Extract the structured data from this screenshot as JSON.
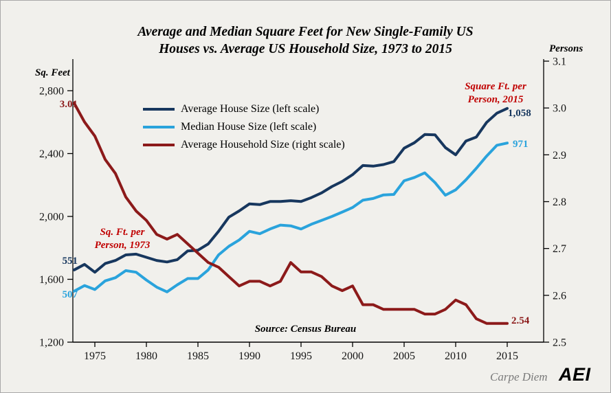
{
  "title": {
    "line1": "Average and Median Square Feet for New Single-Family US",
    "line2": "Houses vs. Average US Household Size, 1973 to 2015"
  },
  "axis_titles": {
    "left": "Sq. Feet",
    "right": "Persons"
  },
  "annotations": {
    "start_household": "3.01",
    "start_avg": "551",
    "start_median": "507",
    "note_1973_line1": "Sq. Ft. per",
    "note_1973_line2": "Person, 1973",
    "note_2015_line1": "Square Ft. per",
    "note_2015_line2": "Person, 2015",
    "end_avg": "1,058",
    "end_median": "971",
    "end_household": "2.54",
    "source": "Source: Census Bureau"
  },
  "footer": {
    "credit": "Carpe Diem",
    "logo": "AEI"
  },
  "colors": {
    "navy": "#17375e",
    "light_blue": "#2aa3dc",
    "dark_red": "#8c1a1a",
    "annotation_red": "#c00000",
    "footer_gray": "#7a7a7a",
    "background": "#f1f0ec"
  },
  "chart_data": {
    "type": "line",
    "title": "Average and Median Square Feet for New Single-Family US Houses vs. Average US Household Size, 1973 to 2015",
    "source": "Census Bureau",
    "grid": false,
    "legend_position": "top-left-inside",
    "x_range": [
      1973,
      2015
    ],
    "x_ticks": [
      1975,
      1980,
      1985,
      1990,
      1995,
      2000,
      2005,
      2010,
      2015
    ],
    "left_axis": {
      "label": "Sq. Feet",
      "range": [
        1200,
        2800
      ],
      "ticks": [
        {
          "v": 1200,
          "label": "1,200"
        },
        {
          "v": 1600,
          "label": "1,600"
        },
        {
          "v": 2000,
          "label": "2,000"
        },
        {
          "v": 2400,
          "label": "2,400"
        },
        {
          "v": 2800,
          "label": "2,800"
        }
      ]
    },
    "right_axis": {
      "label": "Persons",
      "range": [
        2.5,
        3.1
      ],
      "ticks": [
        {
          "v": 2.5,
          "label": "2.5"
        },
        {
          "v": 2.6,
          "label": "2.6"
        },
        {
          "v": 2.7,
          "label": "2.7"
        },
        {
          "v": 2.8,
          "label": "2.8"
        },
        {
          "v": 2.9,
          "label": "2.9"
        },
        {
          "v": 3.0,
          "label": "3.0"
        },
        {
          "v": 3.1,
          "label": "3.1"
        }
      ]
    },
    "years": [
      1973,
      1974,
      1975,
      1976,
      1977,
      1978,
      1979,
      1980,
      1981,
      1982,
      1983,
      1984,
      1985,
      1986,
      1987,
      1988,
      1989,
      1990,
      1991,
      1992,
      1993,
      1994,
      1995,
      1996,
      1997,
      1998,
      1999,
      2000,
      2001,
      2002,
      2003,
      2004,
      2005,
      2006,
      2007,
      2008,
      2009,
      2010,
      2011,
      2012,
      2013,
      2014,
      2015
    ],
    "series": [
      {
        "name": "Average House Size",
        "legend": "Average House Size (left scale)",
        "axis": "left",
        "color": "#17375e",
        "values": [
          1660,
          1695,
          1645,
          1700,
          1720,
          1755,
          1760,
          1740,
          1720,
          1710,
          1725,
          1780,
          1785,
          1825,
          1905,
          1995,
          2035,
          2080,
          2075,
          2095,
          2095,
          2100,
          2095,
          2120,
          2150,
          2190,
          2223,
          2266,
          2324,
          2320,
          2330,
          2349,
          2434,
          2469,
          2521,
          2519,
          2438,
          2392,
          2480,
          2505,
          2598,
          2657,
          2687
        ]
      },
      {
        "name": "Median House Size",
        "legend": "Median House Size (left scale)",
        "axis": "left",
        "color": "#2aa3dc",
        "values": [
          1525,
          1560,
          1535,
          1590,
          1610,
          1655,
          1645,
          1595,
          1550,
          1520,
          1565,
          1605,
          1605,
          1660,
          1755,
          1810,
          1850,
          1905,
          1890,
          1920,
          1945,
          1940,
          1920,
          1950,
          1975,
          2000,
          2028,
          2057,
          2103,
          2114,
          2137,
          2140,
          2227,
          2248,
          2277,
          2215,
          2135,
          2169,
          2233,
          2306,
          2384,
          2453,
          2467
        ]
      },
      {
        "name": "Average Household Size",
        "legend": "Average Household Size (right scale)",
        "axis": "right",
        "color": "#8c1a1a",
        "values": [
          3.01,
          2.97,
          2.94,
          2.89,
          2.86,
          2.81,
          2.78,
          2.76,
          2.73,
          2.72,
          2.73,
          2.71,
          2.69,
          2.67,
          2.66,
          2.64,
          2.62,
          2.63,
          2.63,
          2.62,
          2.63,
          2.67,
          2.65,
          2.65,
          2.64,
          2.62,
          2.61,
          2.62,
          2.58,
          2.58,
          2.57,
          2.57,
          2.57,
          2.57,
          2.56,
          2.56,
          2.57,
          2.59,
          2.58,
          2.55,
          2.54,
          2.54,
          2.54
        ]
      }
    ]
  }
}
